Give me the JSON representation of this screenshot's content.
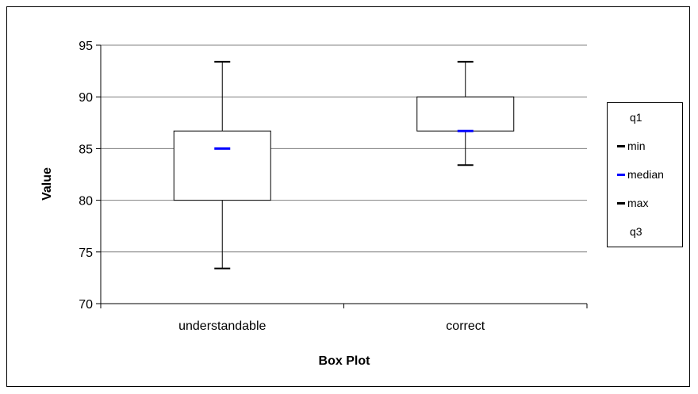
{
  "chart_data": {
    "type": "boxplot",
    "title": "",
    "xlabel": "Box Plot",
    "ylabel": "Value",
    "ylim": [
      70,
      95
    ],
    "yticks": [
      70,
      75,
      80,
      85,
      90,
      95
    ],
    "grid": true,
    "legend_position": "right",
    "categories": [
      "understandable",
      "correct"
    ],
    "boxes": [
      {
        "category": "understandable",
        "min": 73.4,
        "q1": 80,
        "median": 85,
        "q3": 86.7,
        "max": 93.4
      },
      {
        "category": "correct",
        "min": 83.4,
        "q1": 86.7,
        "median": 86.7,
        "q3": 90,
        "max": 93.4
      }
    ],
    "legend": [
      {
        "label": "q1",
        "color": ""
      },
      {
        "label": "min",
        "color": "#000000"
      },
      {
        "label": "median",
        "color": "#0000ff"
      },
      {
        "label": "max",
        "color": "#000000"
      },
      {
        "label": "q3",
        "color": ""
      }
    ],
    "colors": {
      "median": "#0000ff",
      "whisker": "#000000",
      "grid": "#808080"
    }
  }
}
